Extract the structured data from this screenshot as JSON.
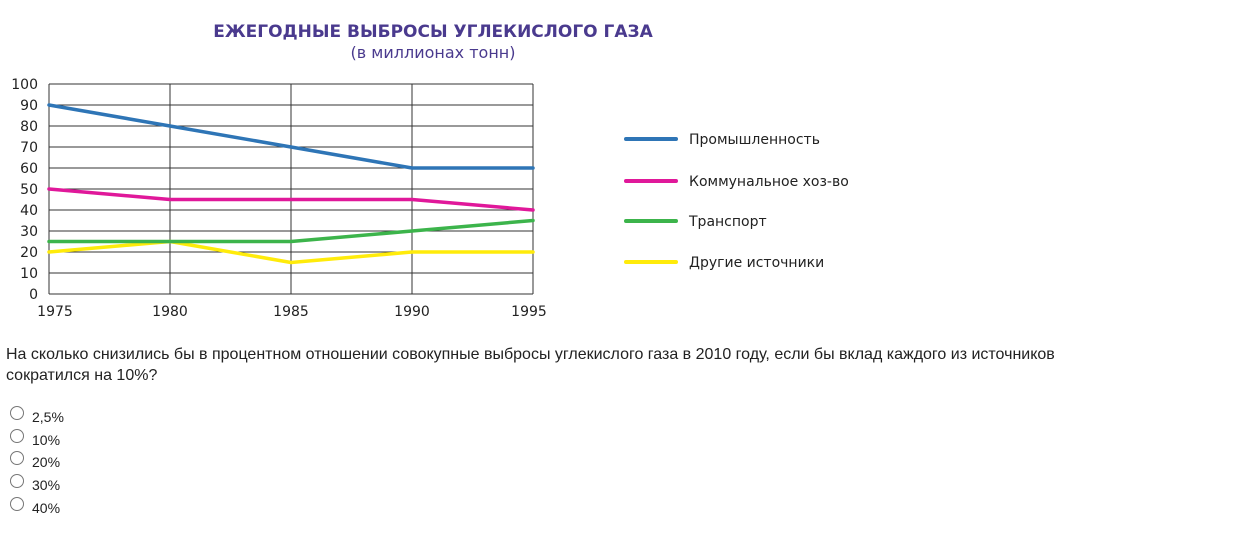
{
  "chart_data": {
    "type": "line",
    "title": "ЕЖЕГОДНЫЕ ВЫБРОСЫ УГЛЕКИСЛОГО ГАЗА",
    "subtitle": "(в миллионах тонн)",
    "xlabel": "",
    "ylabel": "",
    "x": [
      1975,
      1980,
      1985,
      1990,
      1995
    ],
    "x_tick_labels": [
      "1975",
      "1980",
      "1985",
      "1990",
      "1995"
    ],
    "y_tick_labels": [
      "0",
      "10",
      "20",
      "30",
      "40",
      "50",
      "60",
      "70",
      "80",
      "90",
      "100"
    ],
    "ylim": [
      0,
      100
    ],
    "grid": true,
    "legend_position": "right",
    "series": [
      {
        "name": "Промышленность",
        "color": "#2e75b6",
        "values": [
          90,
          80,
          70,
          60,
          60
        ]
      },
      {
        "name": "Коммунальное хоз-во",
        "color": "#e0189a",
        "values": [
          50,
          45,
          45,
          45,
          40
        ]
      },
      {
        "name": "Транспорт",
        "color": "#3cb44b",
        "values": [
          25,
          25,
          25,
          30,
          35
        ]
      },
      {
        "name": "Другие источники",
        "color": "#ffeb0a",
        "values": [
          20,
          25,
          15,
          20,
          20
        ]
      }
    ]
  },
  "question": {
    "text": "На сколько снизились бы в процентном отношении совокупные выбросы углекислого газа в 2010 году, если бы вклад каждого из источников сократился на 10%?",
    "options": [
      "2,5%",
      "10%",
      "20%",
      "30%",
      "40%"
    ]
  }
}
